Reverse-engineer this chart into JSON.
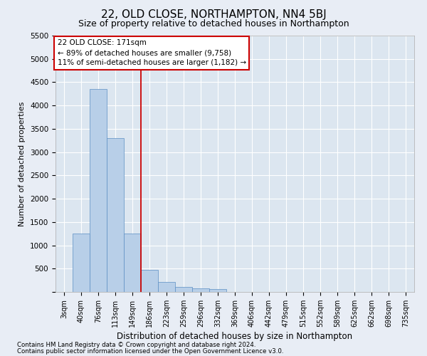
{
  "title": "22, OLD CLOSE, NORTHAMPTON, NN4 5BJ",
  "subtitle": "Size of property relative to detached houses in Northampton",
  "xlabel": "Distribution of detached houses by size in Northampton",
  "ylabel": "Number of detached properties",
  "footnote1": "Contains HM Land Registry data © Crown copyright and database right 2024.",
  "footnote2": "Contains public sector information licensed under the Open Government Licence v3.0.",
  "bar_labels": [
    "3sqm",
    "40sqm",
    "76sqm",
    "113sqm",
    "149sqm",
    "186sqm",
    "223sqm",
    "259sqm",
    "296sqm",
    "332sqm",
    "369sqm",
    "406sqm",
    "442sqm",
    "479sqm",
    "515sqm",
    "552sqm",
    "589sqm",
    "625sqm",
    "662sqm",
    "698sqm",
    "735sqm"
  ],
  "bar_values": [
    0,
    1250,
    4350,
    3300,
    1250,
    480,
    210,
    100,
    70,
    55,
    0,
    0,
    0,
    0,
    0,
    0,
    0,
    0,
    0,
    0,
    0
  ],
  "bar_color": "#b8cfe8",
  "bar_edge_color": "#5b8ec4",
  "vline_color": "#cc0000",
  "annotation_text": "22 OLD CLOSE: 171sqm\n← 89% of detached houses are smaller (9,758)\n11% of semi-detached houses are larger (1,182) →",
  "annotation_box_color": "#ffffff",
  "annotation_box_edge_color": "#cc0000",
  "ylim": [
    0,
    5500
  ],
  "yticks": [
    0,
    500,
    1000,
    1500,
    2000,
    2500,
    3000,
    3500,
    4000,
    4500,
    5000,
    5500
  ],
  "background_color": "#e8edf5",
  "plot_background_color": "#dce6f0",
  "grid_color": "#ffffff"
}
